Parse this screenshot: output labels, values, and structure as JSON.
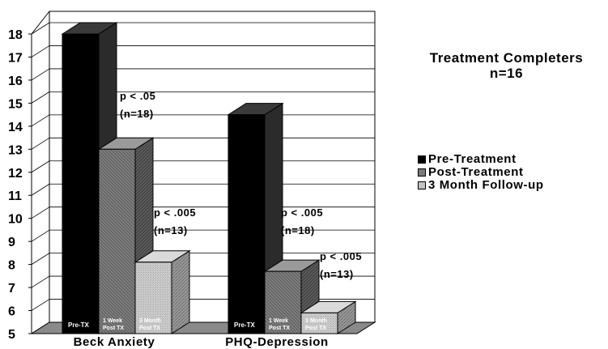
{
  "chart_data": {
    "type": "bar",
    "title": "Treatment Completers",
    "subtitle": "n=16",
    "categories": [
      "Beck Anxiety",
      "PHQ-Depression"
    ],
    "ylim": [
      5,
      18
    ],
    "yticks": [
      5,
      6,
      7,
      8,
      9,
      10,
      11,
      12,
      13,
      14,
      15,
      16,
      17,
      18
    ],
    "grid": true,
    "legend_position": "right",
    "series": [
      {
        "name": "Pre-Treatment",
        "color": "#000000",
        "values": [
          18,
          14.5
        ],
        "bar_labels": [
          "Pre-TX",
          "Pre-TX"
        ]
      },
      {
        "name": "Post-Treatment",
        "color": "#7a7a7a",
        "values": [
          13,
          7.7
        ],
        "bar_labels": [
          "1 Week Post TX",
          "1 Week Post TX"
        ]
      },
      {
        "name": "3 Month Follow-up",
        "color": "#c4c4c4",
        "values": [
          8.1,
          5.9
        ],
        "bar_labels": [
          "3 Month Post TX",
          "3 Month Post TX"
        ]
      }
    ],
    "annotations": [
      {
        "category": 0,
        "series": 1,
        "lines": [
          "p < .05",
          "(n=18)"
        ]
      },
      {
        "category": 0,
        "series": 2,
        "lines": [
          "p < .005",
          "(n=13)"
        ]
      },
      {
        "category": 1,
        "series": 1,
        "lines": [
          "p < .005",
          "(n=18)"
        ]
      },
      {
        "category": 1,
        "series": 2,
        "lines": [
          "p < .005",
          "(n=13)"
        ]
      }
    ]
  }
}
